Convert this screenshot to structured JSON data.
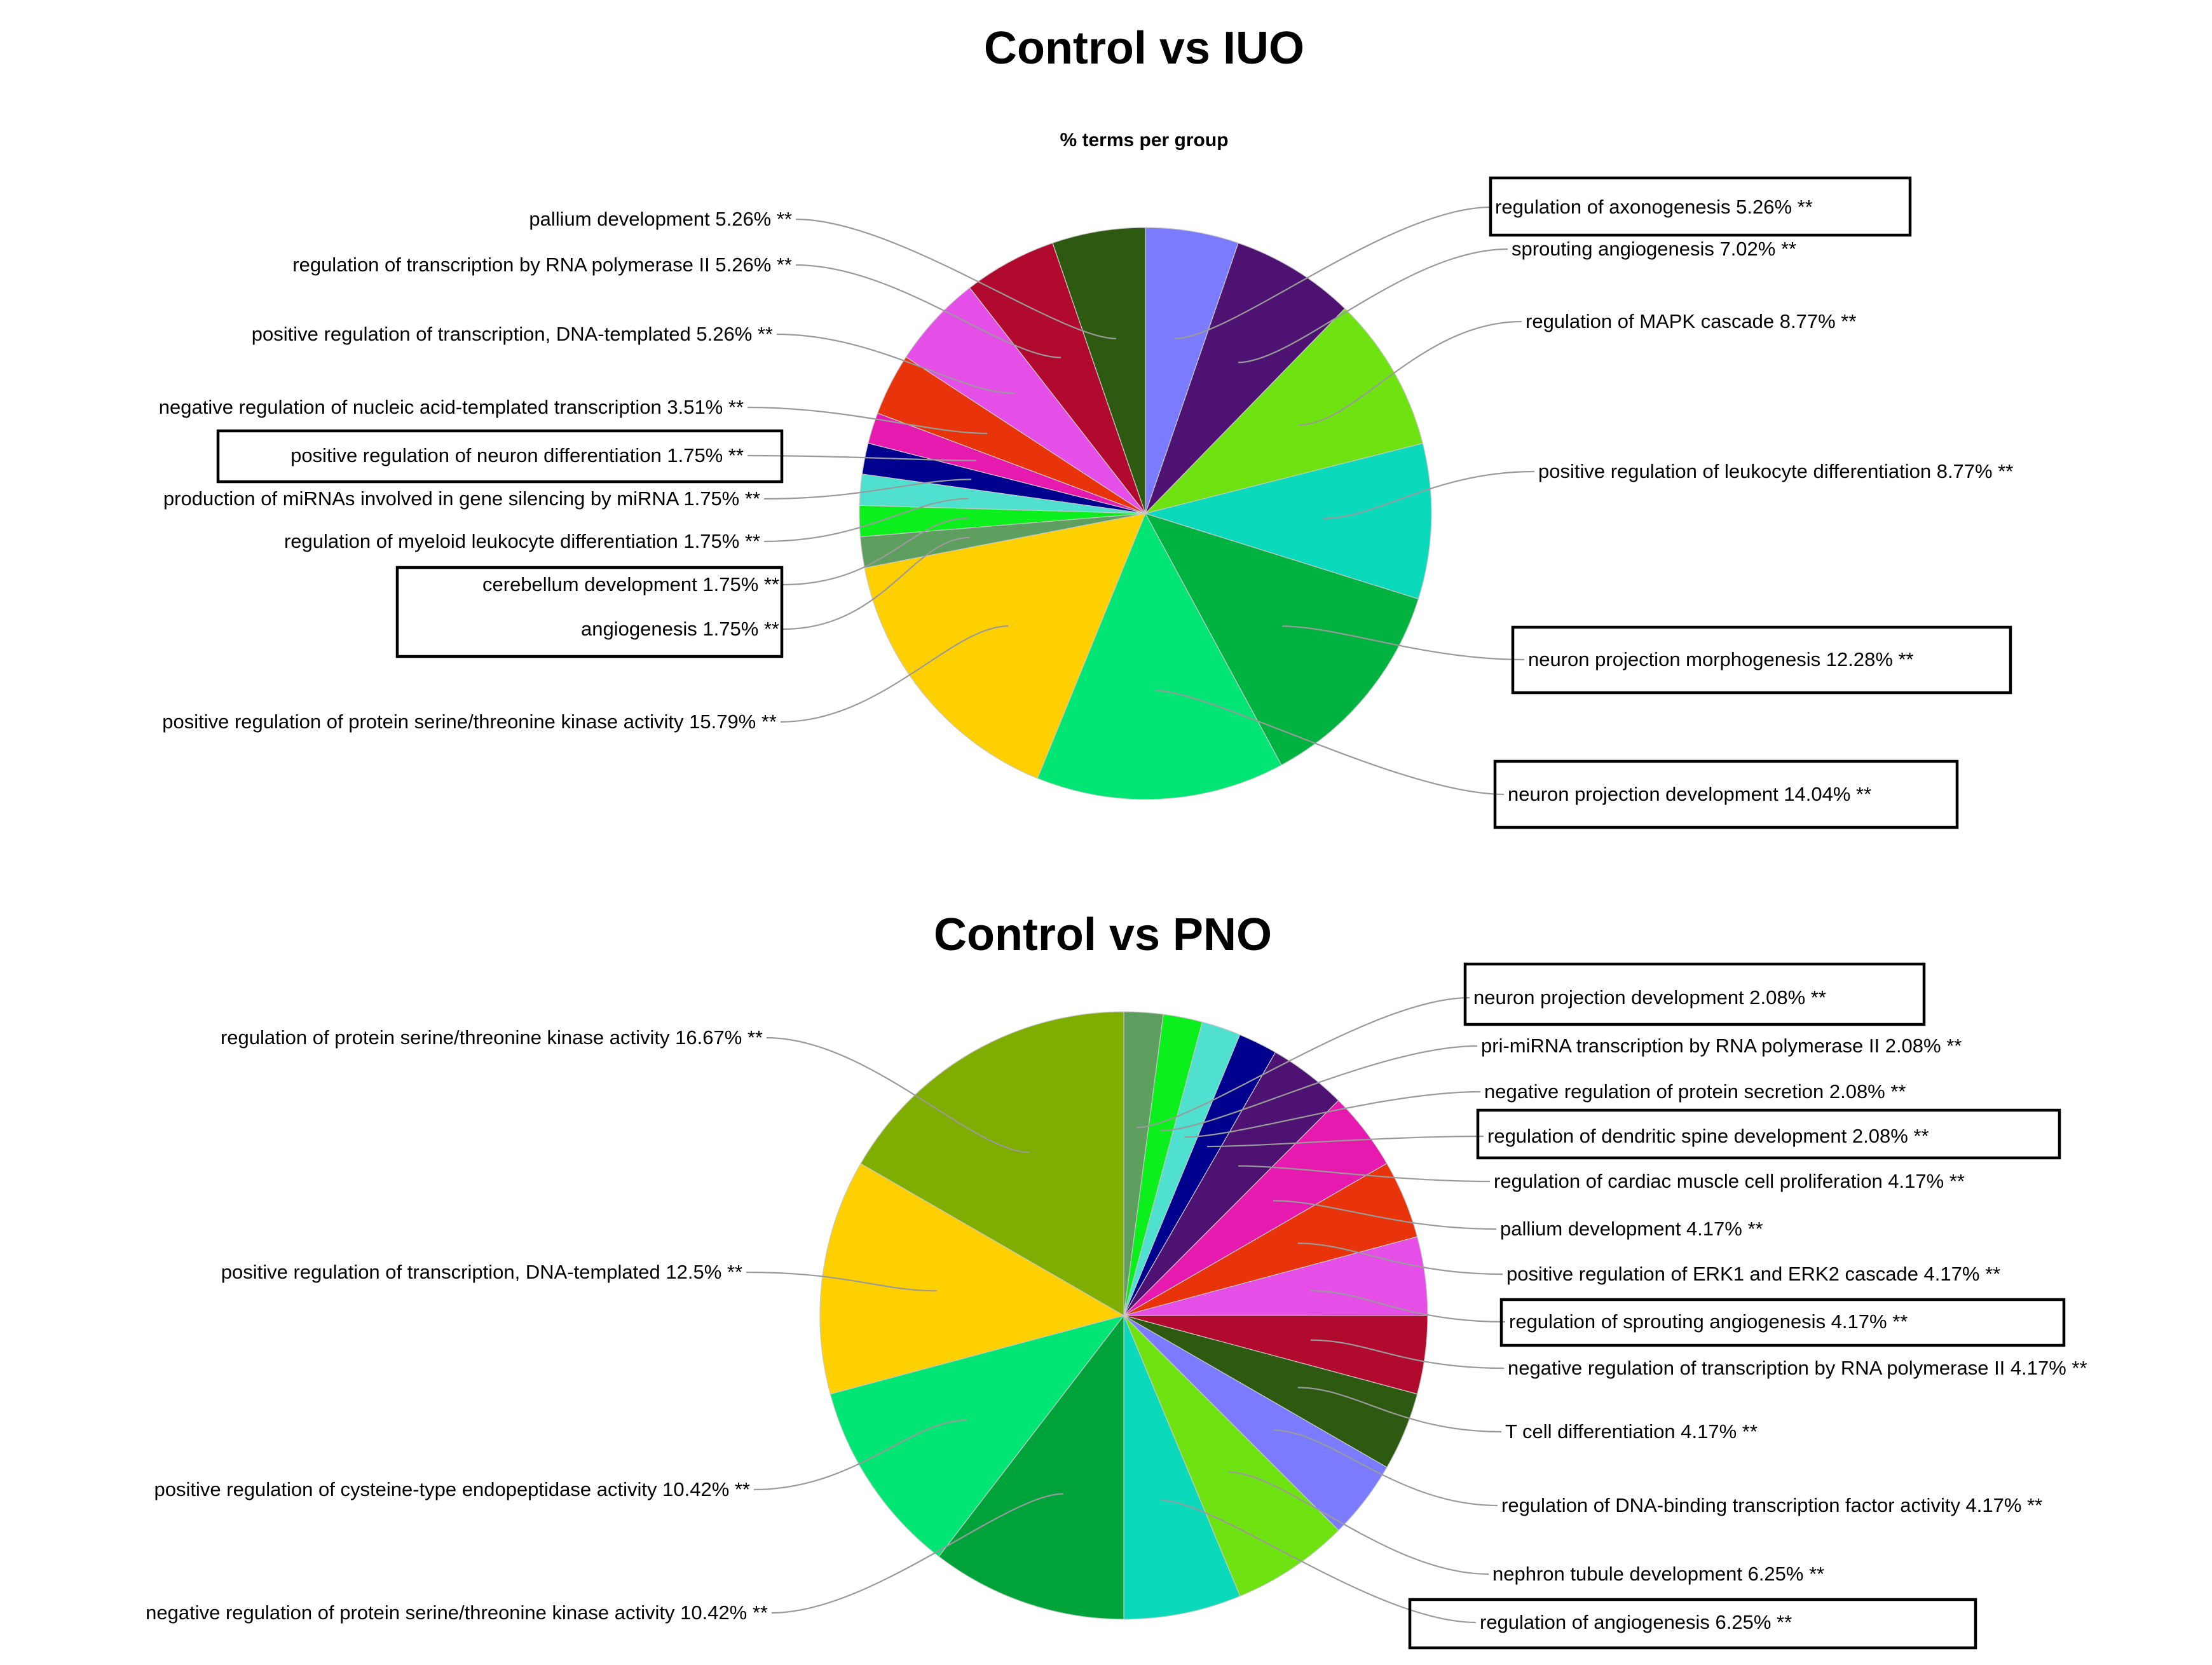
{
  "chart_data": [
    {
      "type": "pie",
      "title": "Control vs IUO",
      "subtitle": "% terms per group",
      "slices": [
        {
          "label": "regulation of axonogenesis",
          "value": 5.26,
          "display": "regulation of axonogenesis 5.26% **",
          "color": "#7B7BFF",
          "highlighted": true
        },
        {
          "label": "sprouting angiogenesis",
          "value": 7.02,
          "display": "sprouting angiogenesis 7.02% **",
          "color": "#4E1372",
          "highlighted": false
        },
        {
          "label": "regulation of MAPK cascade",
          "value": 8.77,
          "display": "regulation of MAPK cascade 8.77% **",
          "color": "#6EE311",
          "highlighted": false
        },
        {
          "label": "positive regulation of leukocyte differentiation",
          "value": 8.77,
          "display": "positive regulation of leukocyte differentiation 8.77% **",
          "color": "#0BD9BC",
          "highlighted": false
        },
        {
          "label": "neuron projection morphogenesis",
          "value": 12.28,
          "display": "neuron projection morphogenesis 12.28% **",
          "color": "#00B23F",
          "highlighted": true
        },
        {
          "label": "neuron projection development",
          "value": 14.04,
          "display": "neuron projection development 14.04% **",
          "color": "#00E573",
          "highlighted": true
        },
        {
          "label": "positive regulation of protein serine/threonine kinase activity",
          "value": 15.79,
          "display": "positive regulation of protein serine/threonine kinase activity 15.79% **",
          "color": "#FFD000",
          "highlighted": false
        },
        {
          "label": "angiogenesis",
          "value": 1.75,
          "display": "angiogenesis 1.75% **",
          "color": "#5E9E5E",
          "highlighted": true
        },
        {
          "label": "cerebellum development",
          "value": 1.75,
          "display": "cerebellum development 1.75% **",
          "color": "#0BF01C",
          "highlighted": true
        },
        {
          "label": "regulation of myeloid leukocyte differentiation",
          "value": 1.75,
          "display": "regulation of myeloid leukocyte differentiation 1.75% **",
          "color": "#4FE0CF",
          "highlighted": false
        },
        {
          "label": "production of miRNAs involved in gene silencing by miRNA",
          "value": 1.75,
          "display": "production of miRNAs involved in gene silencing by miRNA 1.75% **",
          "color": "#00008E",
          "highlighted": false
        },
        {
          "label": "positive regulation of neuron differentiation",
          "value": 1.75,
          "display": "positive regulation of neuron differentiation 1.75% **",
          "color": "#E61AAE",
          "highlighted": true
        },
        {
          "label": "negative regulation of nucleic acid-templated transcription",
          "value": 3.51,
          "display": "negative regulation of nucleic acid-templated transcription 3.51% **",
          "color": "#E8330B",
          "highlighted": false
        },
        {
          "label": "positive regulation of transcription, DNA-templated",
          "value": 5.26,
          "display": "positive regulation of transcription, DNA-templated 5.26% **",
          "color": "#E54FE8",
          "highlighted": false
        },
        {
          "label": "regulation of transcription by RNA polymerase II",
          "value": 5.26,
          "display": "regulation of transcription by RNA polymerase II 5.26% **",
          "color": "#B10A2E",
          "highlighted": false
        },
        {
          "label": "pallium development",
          "value": 5.26,
          "display": "pallium development 5.26% **",
          "color": "#2E5910",
          "highlighted": false
        }
      ]
    },
    {
      "type": "pie",
      "title": "Control vs PNO",
      "slices": [
        {
          "label": "neuron projection development",
          "value": 2.08,
          "display": "neuron projection development 2.08% **",
          "color": "#5E9E5E",
          "highlighted": true
        },
        {
          "label": "pri-miRNA transcription by RNA polymerase II",
          "value": 2.08,
          "display": "pri-miRNA transcription by RNA polymerase II 2.08% **",
          "color": "#0BF01C",
          "highlighted": false
        },
        {
          "label": "negative regulation of protein secretion",
          "value": 2.08,
          "display": "negative regulation of protein secretion 2.08% **",
          "color": "#4FE0CF",
          "highlighted": false
        },
        {
          "label": "regulation of dendritic spine development",
          "value": 2.08,
          "display": "regulation of dendritic spine development 2.08% **",
          "color": "#00008E",
          "highlighted": true
        },
        {
          "label": "regulation of cardiac muscle cell proliferation",
          "value": 4.17,
          "display": "regulation of cardiac muscle cell proliferation 4.17% **",
          "color": "#4E1372",
          "highlighted": false
        },
        {
          "label": "pallium development",
          "value": 4.17,
          "display": "pallium development 4.17% **",
          "color": "#E61AAE",
          "highlighted": false
        },
        {
          "label": "positive regulation of ERK1 and ERK2 cascade",
          "value": 4.17,
          "display": "positive regulation of ERK1 and ERK2 cascade 4.17% **",
          "color": "#E8330B",
          "highlighted": false
        },
        {
          "label": "regulation of sprouting angiogenesis",
          "value": 4.17,
          "display": "regulation of sprouting angiogenesis 4.17% **",
          "color": "#E54FE8",
          "highlighted": true
        },
        {
          "label": "negative regulation of transcription by RNA polymerase II",
          "value": 4.17,
          "display": "negative regulation of transcription by RNA polymerase II 4.17% **",
          "color": "#B10A2E",
          "highlighted": false
        },
        {
          "label": "T cell differentiation",
          "value": 4.17,
          "display": "T cell differentiation 4.17% **",
          "color": "#2E5910",
          "highlighted": false
        },
        {
          "label": "regulation of DNA-binding transcription factor activity",
          "value": 4.17,
          "display": "regulation of DNA-binding transcription factor activity 4.17% **",
          "color": "#7B7BFF",
          "highlighted": false
        },
        {
          "label": "nephron tubule development",
          "value": 6.25,
          "display": "nephron tubule development 6.25% **",
          "color": "#6EE311",
          "highlighted": false
        },
        {
          "label": "regulation of angiogenesis",
          "value": 6.25,
          "display": "regulation of angiogenesis 6.25% **",
          "color": "#0BD9BC",
          "highlighted": true
        },
        {
          "label": "negative regulation of protein serine/threonine kinase activity",
          "value": 10.42,
          "display": "negative regulation of protein serine/threonine kinase activity 10.42% **",
          "color": "#00A33A",
          "highlighted": false
        },
        {
          "label": "positive regulation of cysteine-type endopeptidase activity",
          "value": 10.42,
          "display": "positive regulation of cysteine-type endopeptidase activity 10.42% **",
          "color": "#00E573",
          "highlighted": false
        },
        {
          "label": "positive regulation of transcription, DNA-templated",
          "value": 12.5,
          "display": "positive regulation of transcription, DNA-templated 12.5% **",
          "color": "#FFD000",
          "highlighted": false
        },
        {
          "label": "regulation of protein serine/threonine kinase activity",
          "value": 16.67,
          "display": "regulation of protein serine/threonine kinase activity 16.67% **",
          "color": "#7FAD00",
          "highlighted": false
        }
      ]
    }
  ]
}
